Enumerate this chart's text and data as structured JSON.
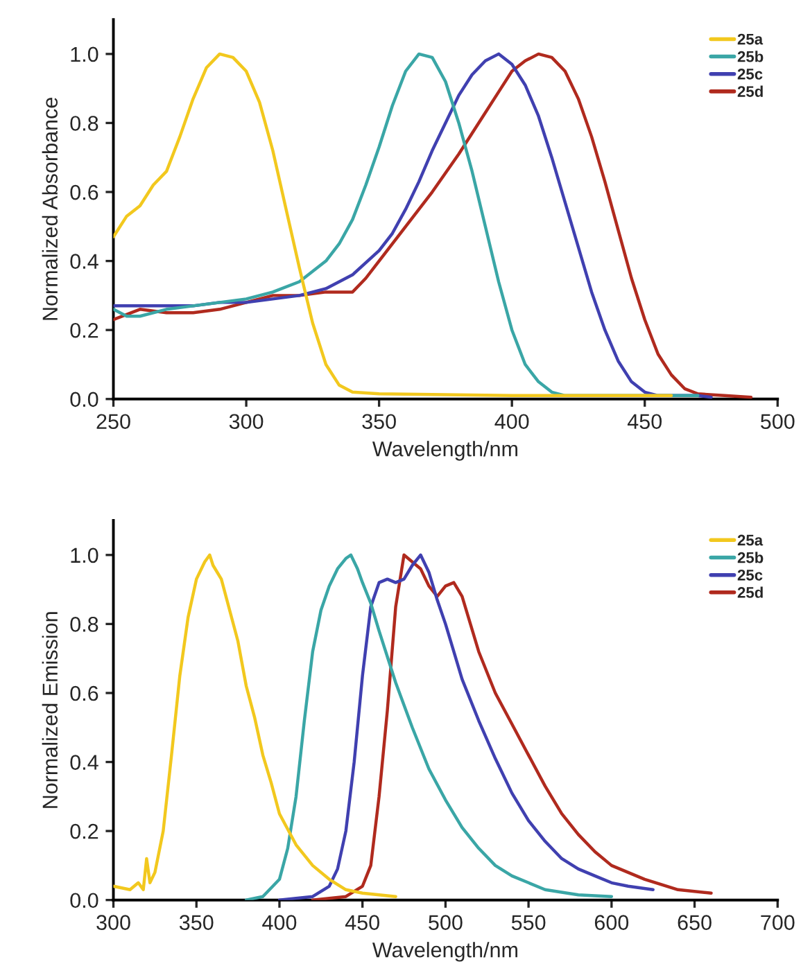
{
  "chart_data": [
    {
      "type": "line",
      "xlabel": "Wavelength/nm",
      "ylabel": "Normalized Absorbance",
      "xlim": [
        250,
        500
      ],
      "xticks": [
        250,
        300,
        350,
        400,
        450,
        500
      ],
      "ylim": [
        0,
        1.1
      ],
      "yticks": [
        {
          "value": 0,
          "label": "0.0"
        },
        {
          "value": 0.2,
          "label": "0.2"
        },
        {
          "value": 0.4,
          "label": "0.4"
        },
        {
          "value": 0.6,
          "label": "0.6"
        },
        {
          "value": 0.8,
          "label": "0.8"
        },
        {
          "value": 1.0,
          "label": "1.0"
        }
      ],
      "grid": false,
      "legend": "top right",
      "line_style": "solid",
      "marker": "none",
      "series": [
        {
          "name": "25a",
          "color": "#f2c81e",
          "x": [
            250,
            255,
            260,
            265,
            270,
            275,
            280,
            285,
            290,
            295,
            300,
            305,
            310,
            315,
            320,
            325,
            330,
            335,
            340,
            350,
            400,
            450,
            460
          ],
          "values": [
            0.47,
            0.53,
            0.56,
            0.62,
            0.66,
            0.76,
            0.87,
            0.96,
            1.0,
            0.99,
            0.95,
            0.86,
            0.72,
            0.55,
            0.38,
            0.22,
            0.1,
            0.04,
            0.02,
            0.015,
            0.01,
            0.01,
            0.01
          ]
        },
        {
          "name": "25b",
          "color": "#3aa6a6",
          "x": [
            250,
            255,
            260,
            270,
            280,
            290,
            300,
            310,
            320,
            325,
            330,
            335,
            340,
            345,
            350,
            355,
            360,
            365,
            370,
            375,
            380,
            385,
            390,
            395,
            400,
            405,
            410,
            415,
            420,
            450,
            470
          ],
          "values": [
            0.26,
            0.24,
            0.24,
            0.26,
            0.27,
            0.28,
            0.29,
            0.31,
            0.34,
            0.37,
            0.4,
            0.45,
            0.52,
            0.62,
            0.73,
            0.85,
            0.95,
            1.0,
            0.99,
            0.92,
            0.8,
            0.66,
            0.5,
            0.34,
            0.2,
            0.1,
            0.05,
            0.02,
            0.01,
            0.01,
            0.01
          ]
        },
        {
          "name": "25c",
          "color": "#4040b0",
          "x": [
            250,
            260,
            270,
            280,
            290,
            300,
            310,
            320,
            330,
            340,
            350,
            355,
            360,
            365,
            370,
            375,
            380,
            385,
            390,
            395,
            400,
            405,
            410,
            415,
            420,
            425,
            430,
            435,
            440,
            445,
            450,
            455,
            470,
            475
          ],
          "values": [
            0.27,
            0.27,
            0.27,
            0.27,
            0.28,
            0.28,
            0.29,
            0.3,
            0.32,
            0.36,
            0.43,
            0.48,
            0.55,
            0.63,
            0.72,
            0.8,
            0.88,
            0.94,
            0.98,
            1.0,
            0.97,
            0.91,
            0.82,
            0.7,
            0.57,
            0.44,
            0.31,
            0.2,
            0.11,
            0.05,
            0.02,
            0.01,
            0.01,
            0.005
          ]
        },
        {
          "name": "25d",
          "color": "#b02a1e",
          "x": [
            250,
            260,
            270,
            280,
            290,
            300,
            310,
            320,
            330,
            340,
            345,
            350,
            360,
            370,
            380,
            390,
            395,
            400,
            405,
            410,
            415,
            420,
            425,
            430,
            435,
            440,
            445,
            450,
            455,
            460,
            465,
            470,
            480,
            490
          ],
          "values": [
            0.23,
            0.26,
            0.25,
            0.25,
            0.26,
            0.28,
            0.3,
            0.3,
            0.31,
            0.31,
            0.35,
            0.4,
            0.5,
            0.6,
            0.71,
            0.83,
            0.89,
            0.95,
            0.98,
            1.0,
            0.99,
            0.95,
            0.87,
            0.76,
            0.63,
            0.49,
            0.35,
            0.23,
            0.13,
            0.07,
            0.03,
            0.015,
            0.01,
            0.005
          ]
        }
      ]
    },
    {
      "type": "line",
      "xlabel": "Wavelength/nm",
      "ylabel": "Normalized Emission",
      "xlim": [
        300,
        700
      ],
      "xticks": [
        300,
        350,
        400,
        450,
        500,
        550,
        600,
        650,
        700
      ],
      "ylim": [
        0,
        1.1
      ],
      "yticks": [
        {
          "value": 0,
          "label": "0.0"
        },
        {
          "value": 0.2,
          "label": "0.2"
        },
        {
          "value": 0.4,
          "label": "0.4"
        },
        {
          "value": 0.6,
          "label": "0.6"
        },
        {
          "value": 0.8,
          "label": "0.8"
        },
        {
          "value": 1.0,
          "label": "1.0"
        }
      ],
      "grid": false,
      "legend": "top right",
      "line_style": "solid",
      "marker": "none",
      "series": [
        {
          "name": "25a",
          "color": "#f2c81e",
          "x": [
            300,
            310,
            315,
            318,
            320,
            322,
            325,
            330,
            335,
            340,
            345,
            350,
            355,
            358,
            360,
            365,
            370,
            375,
            380,
            385,
            390,
            395,
            400,
            410,
            420,
            430,
            440,
            450,
            470
          ],
          "values": [
            0.04,
            0.03,
            0.05,
            0.03,
            0.12,
            0.05,
            0.08,
            0.2,
            0.42,
            0.65,
            0.82,
            0.93,
            0.98,
            1.0,
            0.97,
            0.93,
            0.84,
            0.75,
            0.62,
            0.53,
            0.42,
            0.34,
            0.25,
            0.16,
            0.1,
            0.06,
            0.03,
            0.02,
            0.01
          ]
        },
        {
          "name": "25b",
          "color": "#3aa6a6",
          "x": [
            380,
            390,
            400,
            405,
            410,
            415,
            420,
            425,
            430,
            435,
            440,
            443,
            447,
            450,
            455,
            460,
            470,
            480,
            490,
            500,
            510,
            520,
            530,
            540,
            550,
            560,
            580,
            600
          ],
          "values": [
            0.0,
            0.01,
            0.06,
            0.15,
            0.3,
            0.52,
            0.72,
            0.84,
            0.91,
            0.96,
            0.99,
            1.0,
            0.96,
            0.92,
            0.86,
            0.78,
            0.63,
            0.5,
            0.38,
            0.29,
            0.21,
            0.15,
            0.1,
            0.07,
            0.05,
            0.03,
            0.015,
            0.01
          ]
        },
        {
          "name": "25c",
          "color": "#4040b0",
          "x": [
            400,
            420,
            430,
            435,
            440,
            445,
            450,
            455,
            460,
            465,
            470,
            475,
            480,
            485,
            490,
            495,
            500,
            505,
            510,
            520,
            530,
            540,
            550,
            560,
            570,
            580,
            590,
            600,
            610,
            625
          ],
          "values": [
            0.0,
            0.01,
            0.04,
            0.09,
            0.2,
            0.4,
            0.65,
            0.85,
            0.92,
            0.93,
            0.92,
            0.93,
            0.97,
            1.0,
            0.95,
            0.87,
            0.8,
            0.72,
            0.64,
            0.52,
            0.41,
            0.31,
            0.23,
            0.17,
            0.12,
            0.09,
            0.07,
            0.05,
            0.04,
            0.03
          ]
        },
        {
          "name": "25d",
          "color": "#b02a1e",
          "x": [
            420,
            440,
            450,
            455,
            460,
            465,
            470,
            475,
            480,
            485,
            490,
            495,
            500,
            505,
            510,
            515,
            520,
            530,
            540,
            550,
            560,
            570,
            580,
            590,
            600,
            620,
            640,
            660
          ],
          "values": [
            0.0,
            0.01,
            0.04,
            0.1,
            0.3,
            0.55,
            0.85,
            1.0,
            0.98,
            0.96,
            0.91,
            0.88,
            0.91,
            0.92,
            0.88,
            0.8,
            0.72,
            0.6,
            0.51,
            0.42,
            0.33,
            0.25,
            0.19,
            0.14,
            0.1,
            0.06,
            0.03,
            0.02
          ]
        }
      ]
    }
  ]
}
